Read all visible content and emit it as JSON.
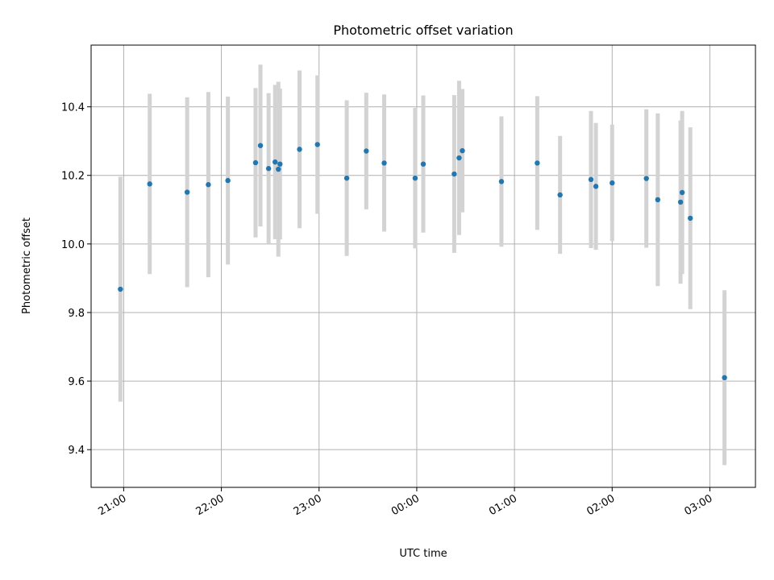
{
  "chart_data": {
    "type": "scatter",
    "title": "Photometric offset variation",
    "xlabel": "UTC time",
    "ylabel": "Photometric offset",
    "grid": true,
    "x_axis": "time",
    "xlim": [
      "20:40",
      "03:28"
    ],
    "ylim": [
      9.29,
      10.58
    ],
    "x_ticks": [
      "21:00",
      "22:00",
      "23:00",
      "00:00",
      "01:00",
      "02:00",
      "03:00"
    ],
    "y_ticks": [
      9.4,
      9.6,
      9.8,
      10.0,
      10.2,
      10.4
    ],
    "colors": {
      "marker": "#1f77b4",
      "errorbar": "#d3d3d3",
      "grid": "#b0b0b0"
    },
    "points": [
      {
        "t": "20:58",
        "y": 9.868,
        "err": 0.328
      },
      {
        "t": "21:16",
        "y": 10.175,
        "err": 0.263
      },
      {
        "t": "21:39",
        "y": 10.151,
        "err": 0.277
      },
      {
        "t": "21:52",
        "y": 10.173,
        "err": 0.27
      },
      {
        "t": "22:04",
        "y": 10.185,
        "err": 0.245
      },
      {
        "t": "22:21",
        "y": 10.237,
        "err": 0.218
      },
      {
        "t": "22:24",
        "y": 10.287,
        "err": 0.236
      },
      {
        "t": "22:29",
        "y": 10.22,
        "err": 0.22
      },
      {
        "t": "22:33",
        "y": 10.239,
        "err": 0.225
      },
      {
        "t": "22:35",
        "y": 10.218,
        "err": 0.255
      },
      {
        "t": "22:36",
        "y": 10.233,
        "err": 0.22
      },
      {
        "t": "22:48",
        "y": 10.276,
        "err": 0.23
      },
      {
        "t": "22:59",
        "y": 10.29,
        "err": 0.202
      },
      {
        "t": "23:17",
        "y": 10.192,
        "err": 0.227
      },
      {
        "t": "23:29",
        "y": 10.271,
        "err": 0.17
      },
      {
        "t": "23:40",
        "y": 10.236,
        "err": 0.2
      },
      {
        "t": "23:59",
        "y": 10.192,
        "err": 0.205
      },
      {
        "t": "00:04",
        "y": 10.233,
        "err": 0.2
      },
      {
        "t": "00:23",
        "y": 10.204,
        "err": 0.23
      },
      {
        "t": "00:26",
        "y": 10.251,
        "err": 0.225
      },
      {
        "t": "00:28",
        "y": 10.272,
        "err": 0.18
      },
      {
        "t": "00:52",
        "y": 10.182,
        "err": 0.19
      },
      {
        "t": "01:14",
        "y": 10.236,
        "err": 0.195
      },
      {
        "t": "01:28",
        "y": 10.143,
        "err": 0.172
      },
      {
        "t": "01:47",
        "y": 10.188,
        "err": 0.2
      },
      {
        "t": "01:50",
        "y": 10.168,
        "err": 0.185
      },
      {
        "t": "02:00",
        "y": 10.178,
        "err": 0.17
      },
      {
        "t": "02:21",
        "y": 10.191,
        "err": 0.202
      },
      {
        "t": "02:28",
        "y": 10.129,
        "err": 0.252
      },
      {
        "t": "02:42",
        "y": 10.122,
        "err": 0.238
      },
      {
        "t": "02:43",
        "y": 10.15,
        "err": 0.238
      },
      {
        "t": "02:48",
        "y": 10.075,
        "err": 0.265
      },
      {
        "t": "03:09",
        "y": 9.61,
        "err": 0.255
      }
    ]
  }
}
